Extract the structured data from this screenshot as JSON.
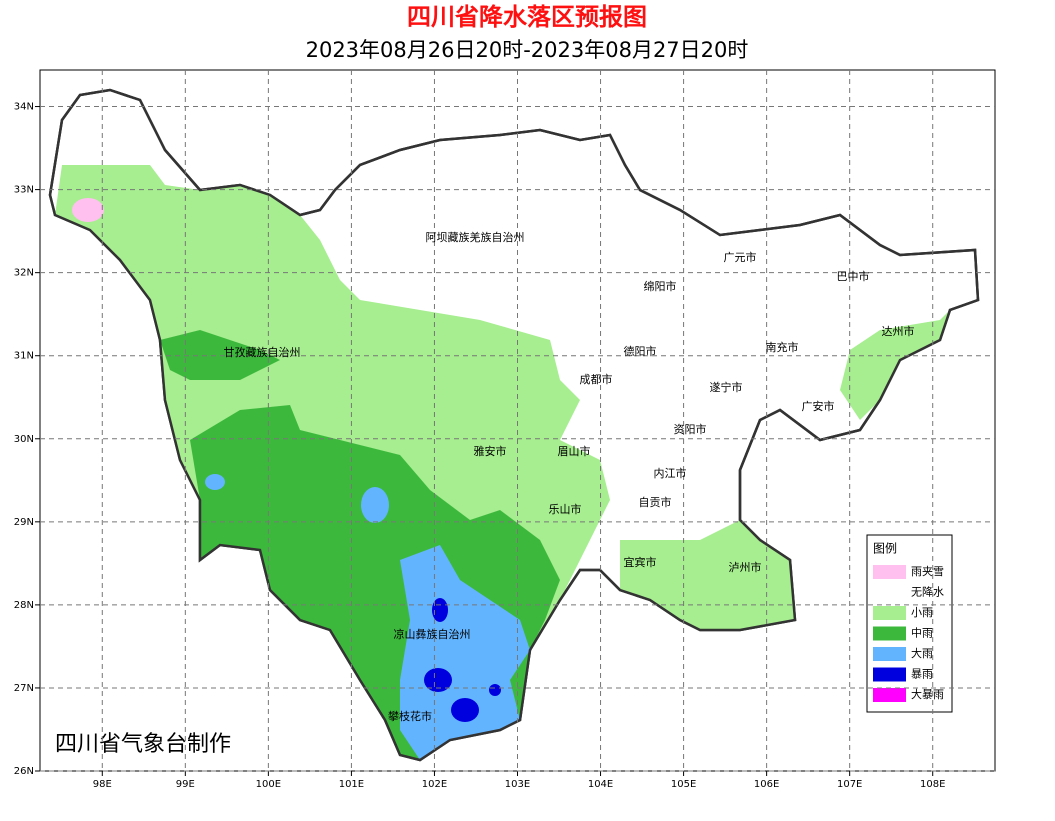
{
  "title": "四川省降水落区预报图",
  "subtitle": "2023年08月26日20时-2023年08月27日20时",
  "credit": "四川省气象台制作",
  "map": {
    "xlim": [
      97.25,
      108.75
    ],
    "ylim": [
      26,
      34.44
    ],
    "xticks": [
      {
        "value": 98,
        "label": "98E"
      },
      {
        "value": 99,
        "label": "99E"
      },
      {
        "value": 100,
        "label": "100E"
      },
      {
        "value": 101,
        "label": "101E"
      },
      {
        "value": 102,
        "label": "102E"
      },
      {
        "value": 103,
        "label": "103E"
      },
      {
        "value": 104,
        "label": "104E"
      },
      {
        "value": 105,
        "label": "105E"
      },
      {
        "value": 106,
        "label": "106E"
      },
      {
        "value": 107,
        "label": "107E"
      },
      {
        "value": 108,
        "label": "108E"
      }
    ],
    "yticks": [
      {
        "value": 26,
        "label": "26N"
      },
      {
        "value": 27,
        "label": "27N"
      },
      {
        "value": 28,
        "label": "28N"
      },
      {
        "value": 29,
        "label": "29N"
      },
      {
        "value": 30,
        "label": "30N"
      },
      {
        "value": 31,
        "label": "31N"
      },
      {
        "value": 32,
        "label": "32N"
      },
      {
        "value": 33,
        "label": "33N"
      },
      {
        "value": 34,
        "label": "34N"
      }
    ],
    "grid": true,
    "places": [
      "阿坝藏族羌族自治州",
      "广元市",
      "巴中市",
      "绵阳市",
      "达州市",
      "甘孜藏族自治州",
      "德阳市",
      "南充市",
      "成都市",
      "遂宁市",
      "广安市",
      "资阳市",
      "雅安市",
      "眉山市",
      "内江市",
      "乐山市",
      "自贡市",
      "宜宾市",
      "泸州市",
      "凉山彝族自治州",
      "攀枝花市"
    ]
  },
  "legend": {
    "title": "图例",
    "items": [
      {
        "label": "雨夹雪",
        "color": "#ffc0f0"
      },
      {
        "label": "无降水",
        "color": "#ffffff"
      },
      {
        "label": "小雨",
        "color": "#a6ee8f"
      },
      {
        "label": "中雨",
        "color": "#3cb93c"
      },
      {
        "label": "大雨",
        "color": "#63b4ff"
      },
      {
        "label": "暴雨",
        "color": "#0000df"
      },
      {
        "label": "大暴雨",
        "color": "#ff00ff"
      }
    ]
  }
}
